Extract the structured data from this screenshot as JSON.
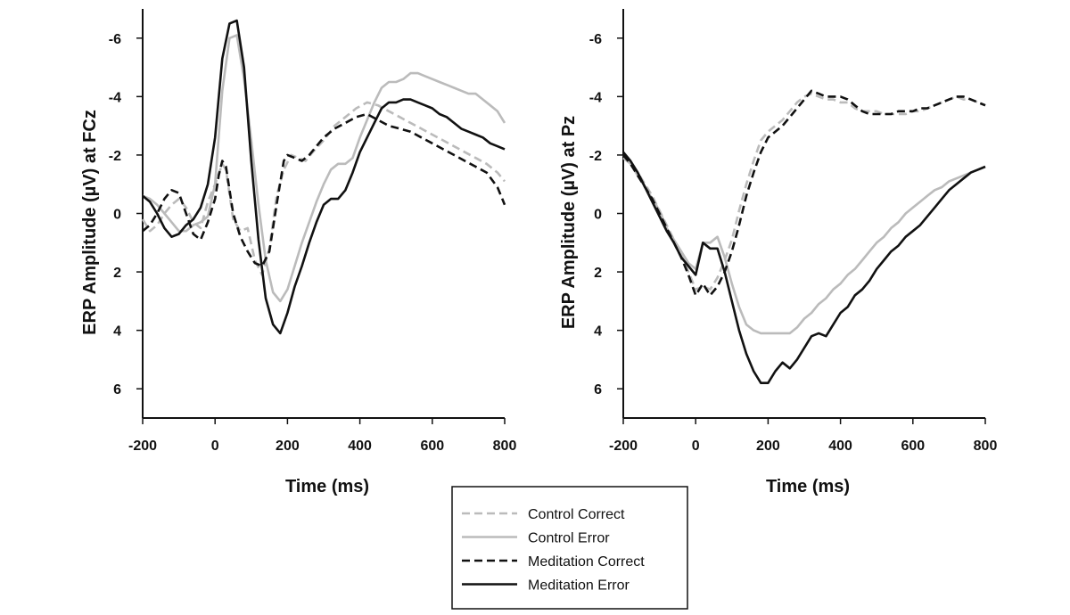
{
  "chart_data": [
    {
      "type": "line",
      "title": "",
      "xlabel": "Time (ms)",
      "ylabel": "ERP Amplitude (µV) at FCz",
      "xlim": [
        -200,
        800
      ],
      "ylim": [
        7,
        -7
      ],
      "y_inverted": true,
      "x_ticks": [
        -200,
        0,
        200,
        400,
        600,
        800
      ],
      "x_tick_labels": [
        "-200",
        "0",
        "200",
        "400",
        "600",
        "800"
      ],
      "y_ticks": [
        -6,
        -4,
        -2,
        0,
        2,
        4,
        6
      ],
      "y_tick_labels": [
        "-6",
        "-4",
        "-2",
        "0",
        "2",
        "4",
        "6"
      ],
      "grid": false,
      "series": [
        {
          "name": "Control Correct",
          "color": "#bbbbbb",
          "dash": "dashed",
          "x": [
            -200,
            -180,
            -160,
            -140,
            -120,
            -100,
            -80,
            -60,
            -40,
            -20,
            0,
            20,
            30,
            50,
            70,
            90,
            110,
            130,
            150,
            170,
            190,
            210,
            230,
            250,
            270,
            300,
            330,
            360,
            390,
            420,
            450,
            480,
            510,
            540,
            570,
            600,
            630,
            660,
            690,
            720,
            750,
            780,
            800
          ],
          "y": [
            0.2,
            0.6,
            0.4,
            0.0,
            -0.3,
            -0.5,
            -0.2,
            0.3,
            0.5,
            -0.4,
            -1.0,
            -1.7,
            -1.5,
            0.2,
            0.6,
            0.5,
            1.6,
            2.1,
            1.2,
            -0.6,
            -1.5,
            -2.0,
            -1.9,
            -1.8,
            -2.1,
            -2.5,
            -3.0,
            -3.3,
            -3.6,
            -3.8,
            -3.7,
            -3.5,
            -3.3,
            -3.1,
            -2.9,
            -2.7,
            -2.5,
            -2.3,
            -2.1,
            -1.9,
            -1.7,
            -1.4,
            -1.1
          ]
        },
        {
          "name": "Control Error",
          "color": "#bbbbbb",
          "dash": "solid",
          "x": [
            -200,
            -180,
            -160,
            -140,
            -120,
            -100,
            -80,
            -60,
            -40,
            -20,
            0,
            20,
            40,
            60,
            80,
            100,
            120,
            140,
            160,
            180,
            200,
            220,
            240,
            260,
            280,
            300,
            320,
            340,
            360,
            380,
            400,
            420,
            440,
            460,
            480,
            500,
            520,
            540,
            560,
            580,
            600,
            620,
            640,
            660,
            680,
            700,
            720,
            740,
            760,
            780,
            800
          ],
          "y": [
            -0.6,
            -0.5,
            -0.3,
            0.0,
            0.3,
            0.6,
            0.6,
            0.4,
            0.3,
            0.1,
            -1.0,
            -4.2,
            -6.0,
            -6.1,
            -4.6,
            -2.5,
            -0.3,
            1.6,
            2.7,
            3.0,
            2.6,
            1.8,
            1.0,
            0.3,
            -0.4,
            -1.0,
            -1.5,
            -1.7,
            -1.7,
            -1.9,
            -2.6,
            -3.2,
            -3.8,
            -4.3,
            -4.5,
            -4.5,
            -4.6,
            -4.8,
            -4.8,
            -4.7,
            -4.6,
            -4.5,
            -4.4,
            -4.3,
            -4.2,
            -4.1,
            -4.1,
            -3.9,
            -3.7,
            -3.5,
            -3.1
          ]
        },
        {
          "name": "Meditation Correct",
          "color": "#111111",
          "dash": "dashed",
          "x": [
            -200,
            -180,
            -160,
            -140,
            -120,
            -100,
            -80,
            -60,
            -40,
            -20,
            0,
            10,
            20,
            30,
            50,
            70,
            90,
            110,
            130,
            150,
            170,
            190,
            200,
            220,
            240,
            260,
            280,
            300,
            330,
            360,
            390,
            420,
            450,
            480,
            510,
            540,
            570,
            600,
            630,
            660,
            690,
            720,
            750,
            780,
            800
          ],
          "y": [
            0.6,
            0.4,
            0.0,
            -0.5,
            -0.8,
            -0.7,
            0.0,
            0.7,
            0.9,
            0.3,
            -0.5,
            -1.3,
            -1.8,
            -1.6,
            0.0,
            0.8,
            1.3,
            1.7,
            1.8,
            1.3,
            -0.3,
            -1.8,
            -2.0,
            -1.9,
            -1.8,
            -2.0,
            -2.3,
            -2.6,
            -2.9,
            -3.1,
            -3.3,
            -3.4,
            -3.2,
            -3.0,
            -2.9,
            -2.8,
            -2.6,
            -2.4,
            -2.2,
            -2.0,
            -1.8,
            -1.6,
            -1.4,
            -0.9,
            -0.3
          ]
        },
        {
          "name": "Meditation Error",
          "color": "#111111",
          "dash": "solid",
          "x": [
            -200,
            -180,
            -160,
            -140,
            -120,
            -100,
            -80,
            -60,
            -40,
            -20,
            0,
            20,
            40,
            60,
            80,
            100,
            120,
            140,
            160,
            180,
            200,
            220,
            240,
            260,
            280,
            300,
            320,
            340,
            360,
            380,
            400,
            420,
            440,
            460,
            480,
            500,
            520,
            540,
            560,
            580,
            600,
            620,
            640,
            660,
            680,
            700,
            720,
            740,
            760,
            780,
            800
          ],
          "y": [
            -0.6,
            -0.4,
            0.0,
            0.5,
            0.8,
            0.7,
            0.4,
            0.2,
            -0.2,
            -1.0,
            -2.6,
            -5.3,
            -6.5,
            -6.6,
            -5.0,
            -1.8,
            0.9,
            2.9,
            3.8,
            4.1,
            3.4,
            2.5,
            1.8,
            1.0,
            0.3,
            -0.3,
            -0.5,
            -0.5,
            -0.8,
            -1.4,
            -2.1,
            -2.6,
            -3.1,
            -3.6,
            -3.8,
            -3.8,
            -3.9,
            -3.9,
            -3.8,
            -3.7,
            -3.6,
            -3.4,
            -3.3,
            -3.1,
            -2.9,
            -2.8,
            -2.7,
            -2.6,
            -2.4,
            -2.3,
            -2.2
          ]
        }
      ]
    },
    {
      "type": "line",
      "title": "",
      "xlabel": "Time (ms)",
      "ylabel": "ERP Amplitude (µV) at Pz",
      "xlim": [
        -200,
        800
      ],
      "ylim": [
        7,
        -7
      ],
      "y_inverted": true,
      "x_ticks": [
        -200,
        0,
        200,
        400,
        600,
        800
      ],
      "x_tick_labels": [
        "-200",
        "0",
        "200",
        "400",
        "600",
        "800"
      ],
      "y_ticks": [
        -6,
        -4,
        -2,
        0,
        2,
        4,
        6
      ],
      "y_tick_labels": [
        "-6",
        "-4",
        "-2",
        "0",
        "2",
        "4",
        "6"
      ],
      "grid": false,
      "series": [
        {
          "name": "Control Correct",
          "color": "#bbbbbb",
          "dash": "dashed",
          "x": [
            -200,
            -180,
            -160,
            -140,
            -120,
            -100,
            -80,
            -60,
            -40,
            -20,
            0,
            20,
            40,
            60,
            80,
            100,
            120,
            140,
            160,
            180,
            200,
            220,
            240,
            260,
            280,
            300,
            320,
            340,
            360,
            380,
            400,
            420,
            440,
            460,
            480,
            500,
            520,
            540,
            560,
            580,
            600,
            620,
            640,
            660,
            680,
            700,
            720,
            740,
            760,
            780,
            800
          ],
          "y": [
            -1.9,
            -1.7,
            -1.4,
            -1.0,
            -0.6,
            -0.1,
            0.4,
            0.9,
            1.4,
            2.0,
            2.6,
            2.5,
            2.6,
            2.2,
            1.6,
            0.9,
            -0.1,
            -1.0,
            -1.8,
            -2.5,
            -2.8,
            -3.0,
            -3.2,
            -3.5,
            -3.8,
            -4.0,
            -4.1,
            -4.0,
            -3.9,
            -3.9,
            -3.8,
            -3.8,
            -3.6,
            -3.5,
            -3.5,
            -3.5,
            -3.4,
            -3.4,
            -3.4,
            -3.4,
            -3.5,
            -3.5,
            -3.6,
            -3.7,
            -3.8,
            -3.9,
            -4.0,
            -3.9,
            -3.9,
            -3.8,
            -3.7
          ]
        },
        {
          "name": "Control Error",
          "color": "#bbbbbb",
          "dash": "solid",
          "x": [
            -200,
            -180,
            -160,
            -140,
            -120,
            -100,
            -80,
            -60,
            -40,
            -20,
            0,
            20,
            40,
            60,
            80,
            100,
            120,
            140,
            160,
            180,
            200,
            220,
            240,
            260,
            280,
            300,
            320,
            340,
            360,
            380,
            400,
            420,
            440,
            460,
            480,
            500,
            520,
            540,
            560,
            580,
            600,
            620,
            640,
            660,
            680,
            700,
            720,
            740,
            760,
            780,
            800
          ],
          "y": [
            -2.0,
            -1.7,
            -1.3,
            -0.9,
            -0.5,
            -0.1,
            0.5,
            0.9,
            1.3,
            1.7,
            1.9,
            1.0,
            1.0,
            0.8,
            1.5,
            2.4,
            3.2,
            3.8,
            4.0,
            4.1,
            4.1,
            4.1,
            4.1,
            4.1,
            3.9,
            3.6,
            3.4,
            3.1,
            2.9,
            2.6,
            2.4,
            2.1,
            1.9,
            1.6,
            1.3,
            1.0,
            0.8,
            0.5,
            0.3,
            0.0,
            -0.2,
            -0.4,
            -0.6,
            -0.8,
            -0.9,
            -1.1,
            -1.2,
            -1.3,
            -1.4,
            -1.5,
            -1.6
          ]
        },
        {
          "name": "Meditation Correct",
          "color": "#111111",
          "dash": "dashed",
          "x": [
            -200,
            -180,
            -160,
            -140,
            -120,
            -100,
            -80,
            -60,
            -40,
            -20,
            0,
            20,
            40,
            60,
            80,
            100,
            120,
            140,
            160,
            180,
            200,
            220,
            240,
            260,
            280,
            300,
            320,
            340,
            360,
            380,
            400,
            420,
            440,
            460,
            480,
            500,
            520,
            540,
            560,
            580,
            600,
            620,
            640,
            660,
            680,
            700,
            720,
            740,
            760,
            780,
            800
          ],
          "y": [
            -2.0,
            -1.7,
            -1.3,
            -0.9,
            -0.5,
            0.0,
            0.5,
            1.0,
            1.5,
            2.1,
            2.8,
            2.4,
            2.8,
            2.5,
            2.0,
            1.3,
            0.4,
            -0.6,
            -1.4,
            -2.1,
            -2.6,
            -2.8,
            -3.0,
            -3.3,
            -3.6,
            -3.9,
            -4.2,
            -4.1,
            -4.0,
            -4.0,
            -4.0,
            -3.9,
            -3.7,
            -3.5,
            -3.4,
            -3.4,
            -3.4,
            -3.4,
            -3.5,
            -3.5,
            -3.5,
            -3.6,
            -3.6,
            -3.7,
            -3.8,
            -3.9,
            -4.0,
            -4.0,
            -3.9,
            -3.8,
            -3.7
          ]
        },
        {
          "name": "Meditation Error",
          "color": "#111111",
          "dash": "solid",
          "x": [
            -200,
            -180,
            -160,
            -140,
            -120,
            -100,
            -80,
            -60,
            -40,
            -20,
            0,
            20,
            40,
            60,
            80,
            100,
            120,
            140,
            160,
            180,
            200,
            220,
            240,
            260,
            280,
            300,
            320,
            340,
            360,
            380,
            400,
            420,
            440,
            460,
            480,
            500,
            520,
            540,
            560,
            580,
            600,
            620,
            640,
            660,
            680,
            700,
            720,
            740,
            760,
            780,
            800
          ],
          "y": [
            -2.1,
            -1.8,
            -1.4,
            -0.9,
            -0.4,
            0.1,
            0.6,
            1.0,
            1.5,
            1.8,
            2.1,
            1.0,
            1.2,
            1.2,
            2.0,
            3.0,
            4.0,
            4.8,
            5.4,
            5.8,
            5.8,
            5.4,
            5.1,
            5.3,
            5.0,
            4.6,
            4.2,
            4.1,
            4.2,
            3.8,
            3.4,
            3.2,
            2.8,
            2.6,
            2.3,
            1.9,
            1.6,
            1.3,
            1.1,
            0.8,
            0.6,
            0.4,
            0.1,
            -0.2,
            -0.5,
            -0.8,
            -1.0,
            -1.2,
            -1.4,
            -1.5,
            -1.6
          ]
        }
      ]
    }
  ],
  "legend": {
    "placement": "bottom-center",
    "entries": [
      {
        "label": "Control Correct",
        "color": "#bbbbbb",
        "dash": "dashed"
      },
      {
        "label": "Control Error",
        "color": "#bbbbbb",
        "dash": "solid"
      },
      {
        "label": "Meditation Correct",
        "color": "#111111",
        "dash": "dashed"
      },
      {
        "label": "Meditation Error",
        "color": "#111111",
        "dash": "solid"
      }
    ]
  }
}
